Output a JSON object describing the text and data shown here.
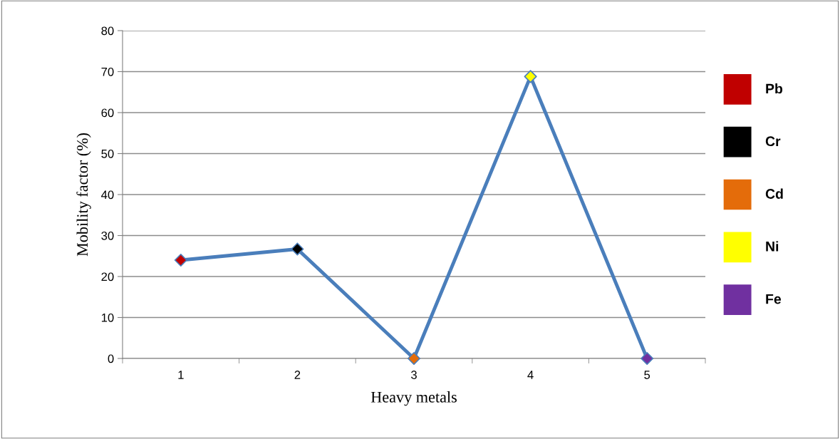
{
  "chart_data": {
    "type": "line",
    "xlabel": "Heavy metals",
    "ylabel": "Mobility factor (%)",
    "categories": [
      "1",
      "2",
      "3",
      "4",
      "5"
    ],
    "series": [
      {
        "color": "#4a7ebb",
        "values": [
          24,
          26.7,
          0,
          68.8,
          0
        ]
      },
      {
        "type": "scatter",
        "name": "Pb",
        "color": "#c00000",
        "x": [
          "1"
        ],
        "values": [
          24
        ],
        "marker": "diamond"
      },
      {
        "type": "scatter",
        "name": "Cr",
        "color": "#000000",
        "x": [
          "2"
        ],
        "values": [
          26.7
        ],
        "marker": "diamond"
      },
      {
        "type": "scatter",
        "name": "Cd",
        "color": "#e46c0a",
        "x": [
          "3"
        ],
        "values": [
          0
        ],
        "marker": "diamond"
      },
      {
        "type": "scatter",
        "name": "Ni",
        "color": "#ffff00",
        "x": [
          "4"
        ],
        "values": [
          68.8
        ],
        "marker": "diamond"
      },
      {
        "type": "scatter",
        "name": "Fe",
        "color": "#7030a0",
        "x": [
          "5"
        ],
        "values": [
          0
        ],
        "marker": "diamond"
      }
    ],
    "ylim": [
      0,
      80
    ],
    "yticks": [
      0,
      10,
      20,
      30,
      40,
      50,
      60,
      70,
      80
    ],
    "grid": "y",
    "legend": "right",
    "line_style": "solid"
  }
}
